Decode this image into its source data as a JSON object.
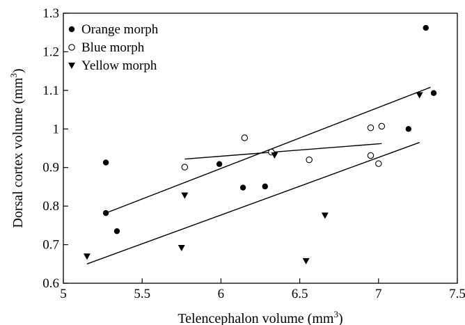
{
  "chart_data": {
    "type": "scatter",
    "xlabel": "Telencephalon volume (mm",
    "xlabel_sup": "3",
    "xlabel_end": ")",
    "ylabel": "Dorsal cortex volume (mm",
    "ylabel_sup": "3",
    "ylabel_end": ")",
    "xlim": [
      5,
      7.5
    ],
    "ylim": [
      0.6,
      1.3
    ],
    "xticks": [
      "5",
      "5.5",
      "6",
      "6.5",
      "7",
      "7.5"
    ],
    "yticks": [
      "0.6",
      "0.7",
      "0.8",
      "0.9",
      "1",
      "1.1",
      "1.2",
      "1.3"
    ],
    "legend_position": "top-left",
    "series": [
      {
        "name": "Orange morph",
        "marker": "filled-circle",
        "points": [
          [
            5.27,
            0.913
          ],
          [
            5.27,
            0.782
          ],
          [
            5.34,
            0.735
          ],
          [
            5.99,
            0.909
          ],
          [
            6.14,
            0.848
          ],
          [
            6.28,
            0.851
          ],
          [
            7.19,
            1.0
          ],
          [
            7.3,
            1.262
          ],
          [
            7.35,
            1.093
          ]
        ],
        "fit_line": [
          [
            5.27,
            0.782
          ],
          [
            7.33,
            1.108
          ]
        ]
      },
      {
        "name": "Blue morph",
        "marker": "open-circle",
        "points": [
          [
            5.77,
            0.901
          ],
          [
            6.15,
            0.977
          ],
          [
            6.32,
            0.94
          ],
          [
            6.56,
            0.92
          ],
          [
            6.95,
            1.003
          ],
          [
            6.95,
            0.931
          ],
          [
            7.0,
            0.91
          ],
          [
            7.02,
            1.007
          ]
        ],
        "fit_line": [
          [
            5.77,
            0.922
          ],
          [
            7.02,
            0.962
          ]
        ]
      },
      {
        "name": "Yellow morph",
        "marker": "filled-triangle-down",
        "points": [
          [
            5.15,
            0.67
          ],
          [
            5.75,
            0.692
          ],
          [
            5.77,
            0.828
          ],
          [
            6.34,
            0.932
          ],
          [
            6.54,
            0.658
          ],
          [
            6.66,
            0.776
          ],
          [
            7.26,
            1.088
          ]
        ],
        "fit_line": [
          [
            5.15,
            0.65
          ],
          [
            7.26,
            0.965
          ]
        ]
      }
    ],
    "grid": false
  }
}
